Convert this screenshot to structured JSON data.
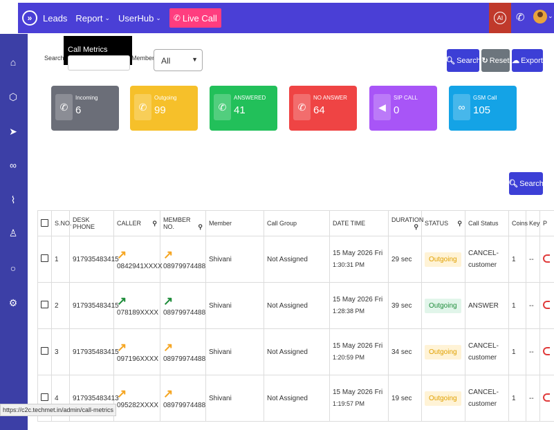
{
  "nav": {
    "leads": "Leads",
    "report": "Report",
    "userhub": "UserHub",
    "live_call": "Live Call",
    "chevron": "⌄",
    "toggle_icon": "»"
  },
  "dropdown": {
    "item": "Call Metrics"
  },
  "filters": {
    "search_label": "Search",
    "member_label": "Member",
    "member_value": "All"
  },
  "buttons": {
    "search": "Search",
    "reset": "Reset",
    "export": "Export"
  },
  "cards": [
    {
      "label": "Incoming",
      "value": "6",
      "color": "#6b6e78",
      "icon": "phone-incoming-icon"
    },
    {
      "label": "Outgoing",
      "value": "99",
      "color": "#f6c02a",
      "icon": "phone-outgoing-icon"
    },
    {
      "label": "ANSWERED",
      "value": "41",
      "color": "#22c05a",
      "icon": "phone-answered-icon"
    },
    {
      "label": "NO ANSWER",
      "value": "64",
      "color": "#ef4444",
      "icon": "phone-missed-icon"
    },
    {
      "label": "SIP CALL",
      "value": "0",
      "color": "#a855f7",
      "icon": "speaker-icon"
    },
    {
      "label": "GSM Call",
      "value": "105",
      "color": "#14a3e6",
      "icon": "voicemail-icon"
    }
  ],
  "table": {
    "headers": [
      "S.NO.",
      "DESK PHONE",
      "CALLER",
      "MEMBER NO.",
      "Member",
      "Call Group",
      "DATE TIME",
      "DURATION",
      "STATUS",
      "Call Status",
      "Coins",
      "Key",
      "P"
    ],
    "rows": [
      {
        "sno": "1",
        "desk": "917935483415",
        "caller": "0842941XXXX",
        "member_no": "08979974488",
        "member": "Shivani",
        "group": "Not Assigned",
        "date": "15 May 2026 Fri",
        "time": "1:30:31 PM",
        "duration": "29 sec",
        "status": "Outgoing",
        "call_status": "CANCEL-customer",
        "coins": "1",
        "key": "--",
        "type": "out"
      },
      {
        "sno": "2",
        "desk": "917935483415",
        "caller": "078189XXXX",
        "member_no": "08979974488",
        "member": "Shivani",
        "group": "Not Assigned",
        "date": "15 May 2026 Fri",
        "time": "1:28:38 PM",
        "duration": "39 sec",
        "status": "Outgoing",
        "call_status": "ANSWER",
        "coins": "1",
        "key": "--",
        "type": "ans"
      },
      {
        "sno": "3",
        "desk": "917935483415",
        "caller": "097196XXXX",
        "member_no": "08979974488",
        "member": "Shivani",
        "group": "Not Assigned",
        "date": "15 May 2026 Fri",
        "time": "1:20:59 PM",
        "duration": "34 sec",
        "status": "Outgoing",
        "call_status": "CANCEL-customer",
        "coins": "1",
        "key": "--",
        "type": "out"
      },
      {
        "sno": "4",
        "desk": "917935483413",
        "caller": "095282XXXX",
        "member_no": "08979974488",
        "member": "Shivani",
        "group": "Not Assigned",
        "date": "15 May 2026 Fri",
        "time": "1:19:57 PM",
        "duration": "19 sec",
        "status": "Outgoing",
        "call_status": "CANCEL-customer",
        "coins": "1",
        "key": "--",
        "type": "out"
      }
    ]
  },
  "status_url": "https://c2c.techmet.in/admin/call-metrics"
}
